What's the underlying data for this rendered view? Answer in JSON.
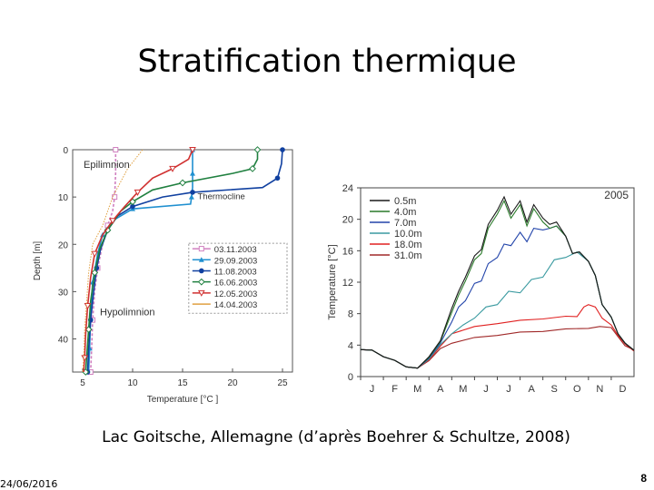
{
  "slide": {
    "title": "Stratification thermique",
    "caption": "Lac Goitsche, Allemagne (d’après Boehrer & Schultze, 2008)",
    "date": "24/06/2016",
    "page_number": "8"
  },
  "chart_data": [
    {
      "type": "line",
      "title": "",
      "xlabel": "Temperature [°C ]",
      "ylabel": "Depth [m]",
      "xlim": [
        4,
        26
      ],
      "ylim": [
        47,
        0
      ],
      "xticks": [
        5,
        10,
        15,
        20,
        25
      ],
      "yticks": [
        0,
        10,
        20,
        30,
        40
      ],
      "annotations": [
        "Epilimnion",
        "Thermocline",
        "Hypolimnion"
      ],
      "legend_position": "bottom-right",
      "series": [
        {
          "name": "03.11.2003",
          "color": "#d080c0",
          "points": [
            [
              8.3,
              0
            ],
            [
              8.3,
              5
            ],
            [
              8.2,
              10
            ],
            [
              8.0,
              13
            ],
            [
              7.5,
              16
            ],
            [
              7,
              20
            ],
            [
              6.5,
              25
            ],
            [
              6.2,
              30
            ],
            [
              6,
              36
            ],
            [
              5.9,
              42
            ],
            [
              5.8,
              47
            ]
          ]
        },
        {
          "name": "29.09.2003",
          "color": "#2090d0",
          "points": [
            [
              16,
              0
            ],
            [
              16,
              2
            ],
            [
              16,
              5
            ],
            [
              16,
              8
            ],
            [
              15.9,
              10
            ],
            [
              15.8,
              11.5
            ],
            [
              10,
              12.5
            ],
            [
              8,
              15
            ],
            [
              7,
              18
            ],
            [
              6.5,
              22
            ],
            [
              6,
              28
            ],
            [
              5.8,
              35
            ],
            [
              5.7,
              42
            ],
            [
              5.6,
              47
            ]
          ]
        },
        {
          "name": "11.08.2003",
          "color": "#1040a0",
          "points": [
            [
              25,
              0
            ],
            [
              24.9,
              3
            ],
            [
              24.5,
              6
            ],
            [
              23,
              8
            ],
            [
              16,
              9
            ],
            [
              13,
              10
            ],
            [
              10,
              12
            ],
            [
              8.5,
              14
            ],
            [
              7.5,
              17
            ],
            [
              6.8,
              21
            ],
            [
              6.4,
              25
            ],
            [
              6.1,
              30
            ],
            [
              5.8,
              36
            ],
            [
              5.6,
              42
            ],
            [
              5.5,
              47
            ]
          ]
        },
        {
          "name": "16.06.2003",
          "color": "#208040",
          "points": [
            [
              22.5,
              0
            ],
            [
              22.5,
              2
            ],
            [
              22,
              4
            ],
            [
              20,
              5
            ],
            [
              15,
              7
            ],
            [
              12,
              8.5
            ],
            [
              10,
              11
            ],
            [
              8.8,
              13
            ],
            [
              7.5,
              17
            ],
            [
              6.7,
              21
            ],
            [
              6.2,
              26
            ],
            [
              5.8,
              32
            ],
            [
              5.6,
              38
            ],
            [
              5.4,
              44
            ],
            [
              5.3,
              47
            ]
          ]
        },
        {
          "name": "12.05.2003",
          "color": "#d03030",
          "points": [
            [
              16,
              0
            ],
            [
              15.6,
              2
            ],
            [
              14,
              4
            ],
            [
              12,
              6
            ],
            [
              10.5,
              9
            ],
            [
              9.2,
              12
            ],
            [
              8,
              15
            ],
            [
              7,
              18
            ],
            [
              6.2,
              22
            ],
            [
              5.8,
              27
            ],
            [
              5.5,
              33
            ],
            [
              5.3,
              39
            ],
            [
              5.2,
              44
            ],
            [
              5.1,
              47
            ]
          ]
        },
        {
          "name": "14.04.2003",
          "color": "#e0a040",
          "points": [
            [
              11,
              0
            ],
            [
              9.5,
              4
            ],
            [
              8,
              10
            ],
            [
              7,
              16
            ],
            [
              6,
              20
            ],
            [
              5.6,
              26
            ],
            [
              5.4,
              32
            ],
            [
              5.2,
              38
            ],
            [
              5.1,
              44
            ],
            [
              5.0,
              47
            ]
          ]
        }
      ]
    },
    {
      "type": "line",
      "title": "2005",
      "xlabel": "",
      "ylabel": "Temperature [°C]",
      "ylim": [
        0,
        24
      ],
      "yticks": [
        0,
        4,
        8,
        12,
        16,
        20,
        24
      ],
      "categories": [
        "J",
        "F",
        "M",
        "A",
        "M",
        "J",
        "J",
        "A",
        "S",
        "O",
        "N",
        "D"
      ],
      "legend_position": "top-right",
      "series": [
        {
          "name": "0.5m",
          "color": "#1a1a1a",
          "x": [
            0,
            0.5,
            1,
            1.5,
            2,
            2.5,
            3,
            3.5,
            4,
            4.3,
            4.6,
            5,
            5.3,
            5.6,
            6,
            6.3,
            6.6,
            7,
            7.3,
            7.6,
            8,
            8.3,
            8.6,
            9,
            9.3,
            9.6,
            10,
            10.3,
            10.6,
            11,
            11.3,
            11.6,
            12
          ],
          "y": [
            3.5,
            3.3,
            2.6,
            2,
            1.3,
            1,
            2.6,
            4.5,
            9,
            10.5,
            13,
            15,
            16.5,
            19,
            21.5,
            22.5,
            21,
            22,
            20,
            21.5,
            20.5,
            19,
            20,
            17.5,
            16,
            15.5,
            15,
            12.5,
            9.5,
            7.5,
            5.5,
            4.2,
            3.4
          ]
        },
        {
          "name": "4.0m",
          "color": "#2a7a2a",
          "x": [
            0,
            0.5,
            1,
            1.5,
            2,
            2.5,
            3,
            3.5,
            4,
            4.3,
            4.6,
            5,
            5.3,
            5.6,
            6,
            6.3,
            6.6,
            7,
            7.3,
            7.6,
            8,
            8.3,
            8.6,
            9,
            9.3,
            9.6,
            10,
            10.3,
            10.6,
            11,
            11.3,
            11.6,
            12
          ],
          "y": [
            3.5,
            3.3,
            2.6,
            2,
            1.3,
            1,
            2.5,
            4.4,
            8.5,
            10,
            12.5,
            14.5,
            16,
            18.5,
            21,
            22,
            20.5,
            21.5,
            19.5,
            21,
            20,
            18.5,
            19.5,
            17.5,
            16,
            15.5,
            15,
            12.5,
            9.5,
            7.5,
            5.5,
            4.2,
            3.4
          ]
        },
        {
          "name": "7.0m",
          "color": "#2244aa",
          "x": [
            0,
            0.5,
            1,
            1.5,
            2,
            2.5,
            3,
            3.5,
            4,
            4.3,
            4.6,
            5,
            5.3,
            5.6,
            6,
            6.3,
            6.6,
            7,
            7.3,
            7.6,
            8,
            8.3,
            8.6,
            9,
            9.3,
            9.6,
            10,
            10.3,
            10.6,
            11,
            11.3,
            11.6,
            12
          ],
          "y": [
            3.5,
            3.3,
            2.6,
            2,
            1.3,
            1,
            2.4,
            4.2,
            7,
            8.5,
            10,
            11.5,
            12.5,
            14,
            15.5,
            16.5,
            17,
            18,
            17.5,
            18.5,
            19,
            18.5,
            19.5,
            17.5,
            16,
            15.5,
            15,
            12.5,
            9.5,
            7.5,
            5.5,
            4.2,
            3.4
          ]
        },
        {
          "name": "10.0m",
          "color": "#3a9aa0",
          "x": [
            0,
            0.5,
            1,
            1.5,
            2,
            2.5,
            3,
            3.5,
            4,
            4.5,
            5,
            5.5,
            6,
            6.5,
            7,
            7.5,
            8,
            8.5,
            9,
            9.5,
            10,
            10.3,
            10.6,
            11,
            11.3,
            11.6,
            12
          ],
          "y": [
            3.5,
            3.3,
            2.6,
            2,
            1.3,
            1,
            2.3,
            4,
            5.5,
            6.5,
            7.5,
            8.5,
            9.5,
            10.5,
            11,
            12,
            13,
            14.5,
            15.5,
            15.5,
            15,
            12.5,
            9.5,
            7.5,
            5.5,
            4.2,
            3.4
          ]
        },
        {
          "name": "18.0m",
          "color": "#e02020",
          "x": [
            0,
            0.5,
            1,
            1.5,
            2,
            2.5,
            3,
            3.5,
            4,
            5,
            6,
            7,
            8,
            9,
            9.5,
            9.8,
            10,
            10.3,
            10.6,
            11,
            11.3,
            11.6,
            12
          ],
          "y": [
            3.5,
            3.3,
            2.6,
            2,
            1.3,
            1,
            2.2,
            3.8,
            5.5,
            6.3,
            6.8,
            7.1,
            7.4,
            7.6,
            7.7,
            8.5,
            9.5,
            8.5,
            7.5,
            6.5,
            5.3,
            4.1,
            3.3
          ]
        },
        {
          "name": "31.0m",
          "color": "#a02828",
          "x": [
            0,
            0.5,
            1,
            1.5,
            2,
            2.5,
            3,
            3.5,
            4,
            5,
            6,
            7,
            8,
            9,
            10,
            10.5,
            11,
            11.3,
            11.6,
            12
          ],
          "y": [
            3.5,
            3.3,
            2.6,
            2,
            1.3,
            1,
            2.1,
            3.5,
            4.3,
            4.9,
            5.3,
            5.6,
            5.8,
            6,
            6.2,
            6.3,
            6.3,
            5,
            4,
            3.3
          ]
        }
      ]
    }
  ]
}
